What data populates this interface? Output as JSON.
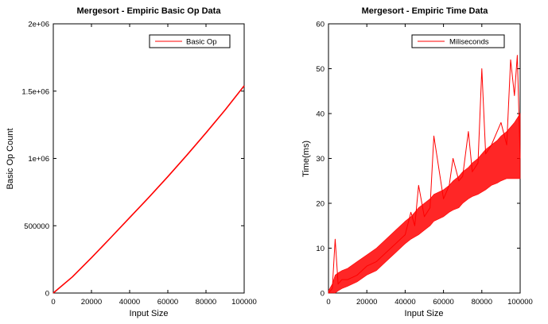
{
  "chart_data": [
    {
      "type": "line",
      "title": "Mergesort - Empiric Basic Op Data",
      "xlabel": "Input Size",
      "ylabel": "Basic Op Count",
      "xlim": [
        0,
        100000
      ],
      "ylim": [
        0,
        2000000
      ],
      "xticks": [
        0,
        20000,
        40000,
        60000,
        80000,
        100000
      ],
      "xtick_labels": [
        "0",
        "20000",
        "40000",
        "60000",
        "80000",
        "100000"
      ],
      "yticks": [
        0,
        500000,
        1000000,
        1500000,
        2000000
      ],
      "ytick_labels": [
        "0",
        "500000",
        "1e+06",
        "1.5e+06",
        "2e+06"
      ],
      "legend": "top-right",
      "grid": false,
      "series": [
        {
          "name": "Basic Op",
          "color": "#ff0000",
          "x": [
            0,
            10000,
            20000,
            30000,
            40000,
            50000,
            60000,
            70000,
            80000,
            90000,
            100000
          ],
          "y": [
            0,
            120000,
            262000,
            410000,
            560000,
            710000,
            865000,
            1025000,
            1190000,
            1360000,
            1540000
          ]
        }
      ]
    },
    {
      "type": "line",
      "title": "Mergesort - Empiric Time Data",
      "xlabel": "Input Size",
      "ylabel": "Time(ms)",
      "xlim": [
        0,
        100000
      ],
      "ylim": [
        0,
        60
      ],
      "xticks": [
        0,
        20000,
        40000,
        60000,
        80000,
        100000
      ],
      "xtick_labels": [
        "0",
        "20000",
        "40000",
        "60000",
        "80000",
        "100000"
      ],
      "yticks": [
        0,
        10,
        20,
        30,
        40,
        50,
        60
      ],
      "ytick_labels": [
        "0",
        "10",
        "20",
        "30",
        "40",
        "50",
        "60"
      ],
      "legend": "top-right",
      "grid": false,
      "series": [
        {
          "name": "Miliseconds",
          "color": "#ff0000",
          "x": [
            0,
            2000,
            3500,
            5000,
            7000,
            10000,
            15000,
            20000,
            25000,
            30000,
            35000,
            40000,
            43000,
            45000,
            47000,
            50000,
            53000,
            55000,
            60000,
            63000,
            65000,
            68000,
            70000,
            73000,
            75000,
            78000,
            80000,
            82000,
            85000,
            88000,
            90000,
            93000,
            95000,
            97000,
            98500,
            100000
          ],
          "y": [
            0,
            1,
            12,
            2,
            3,
            3,
            4,
            6,
            7,
            9,
            11,
            13,
            18,
            15,
            24,
            17,
            19,
            35,
            21,
            24,
            30,
            25,
            26,
            36,
            27,
            29,
            50,
            31,
            33,
            36,
            38,
            33,
            52,
            44,
            53,
            30
          ],
          "band_low": [
            0,
            0,
            0,
            0.5,
            1,
            1.5,
            2.5,
            4,
            5,
            7,
            9,
            11,
            12,
            12.5,
            13,
            14,
            15,
            16,
            17,
            18,
            18.5,
            19,
            20,
            21,
            21.5,
            22,
            22.5,
            23,
            24,
            24.5,
            25,
            25.5,
            25.5,
            25.5,
            25.5,
            25.5
          ],
          "band_high": [
            0.5,
            2,
            4,
            4.5,
            5,
            5.5,
            7,
            8.5,
            10,
            12,
            14,
            16,
            17,
            18,
            19,
            20,
            21,
            22,
            23,
            24,
            25,
            26,
            27,
            28,
            29,
            30,
            31,
            32,
            33,
            34,
            35,
            36,
            37,
            38,
            39,
            40
          ]
        }
      ]
    }
  ]
}
